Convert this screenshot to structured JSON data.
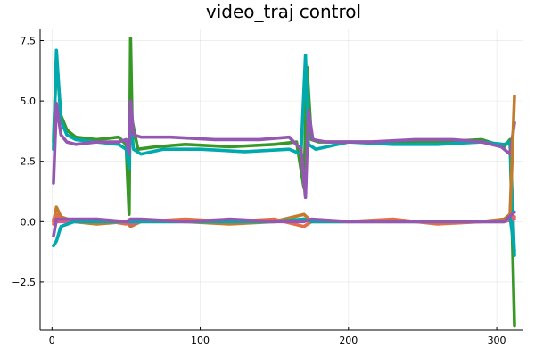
{
  "chart_data": {
    "type": "line",
    "title": "video_traj control",
    "xlabel": "",
    "ylabel": "",
    "xlim": [
      -8,
      318
    ],
    "ylim": [
      -4.5,
      8.0
    ],
    "xticks": [
      0,
      100,
      200,
      300
    ],
    "xtick_labels": [
      "0",
      "100",
      "200",
      "300"
    ],
    "yticks": [
      -2.5,
      0.0,
      2.5,
      5.0,
      7.5
    ],
    "ytick_labels": [
      "−2.5",
      "0.0",
      "2.5",
      "5.0",
      "7.5"
    ],
    "grid": true,
    "legend": "none",
    "series": [
      {
        "color": "#389826",
        "values": [
          [
            1,
            3.3
          ],
          [
            3,
            6.8
          ],
          [
            6,
            4.4
          ],
          [
            10,
            3.8
          ],
          [
            16,
            3.5
          ],
          [
            30,
            3.4
          ],
          [
            45,
            3.5
          ],
          [
            50,
            3.2
          ],
          [
            52,
            0.3
          ],
          [
            53,
            7.6
          ],
          [
            54,
            4.2
          ],
          [
            58,
            3.0
          ],
          [
            70,
            3.1
          ],
          [
            90,
            3.2
          ],
          [
            120,
            3.1
          ],
          [
            150,
            3.2
          ],
          [
            165,
            3.3
          ],
          [
            170,
            1.4
          ],
          [
            172,
            6.4
          ],
          [
            175,
            3.4
          ],
          [
            180,
            3.3
          ],
          [
            220,
            3.3
          ],
          [
            260,
            3.3
          ],
          [
            290,
            3.4
          ],
          [
            305,
            3.1
          ],
          [
            309,
            3.4
          ],
          [
            312,
            -4.3
          ]
        ]
      },
      {
        "color": "#00a9ad",
        "values": [
          [
            1,
            3.0
          ],
          [
            3,
            7.1
          ],
          [
            6,
            4.2
          ],
          [
            10,
            3.6
          ],
          [
            16,
            3.4
          ],
          [
            30,
            3.3
          ],
          [
            45,
            3.2
          ],
          [
            50,
            3.0
          ],
          [
            52,
            2.2
          ],
          [
            53,
            4.4
          ],
          [
            55,
            3.0
          ],
          [
            60,
            2.8
          ],
          [
            75,
            3.0
          ],
          [
            100,
            3.0
          ],
          [
            130,
            2.9
          ],
          [
            160,
            3.0
          ],
          [
            168,
            2.8
          ],
          [
            171,
            6.9
          ],
          [
            173,
            3.2
          ],
          [
            178,
            3.0
          ],
          [
            200,
            3.3
          ],
          [
            230,
            3.2
          ],
          [
            260,
            3.2
          ],
          [
            290,
            3.3
          ],
          [
            305,
            3.2
          ],
          [
            309,
            3.3
          ],
          [
            312,
            -1.4
          ]
        ]
      },
      {
        "color": "#9558b2",
        "values": [
          [
            1,
            1.6
          ],
          [
            3,
            4.9
          ],
          [
            6,
            3.6
          ],
          [
            10,
            3.3
          ],
          [
            16,
            3.2
          ],
          [
            30,
            3.3
          ],
          [
            45,
            3.3
          ],
          [
            50,
            3.4
          ],
          [
            52,
            2.8
          ],
          [
            53,
            5.0
          ],
          [
            55,
            3.6
          ],
          [
            60,
            3.5
          ],
          [
            80,
            3.5
          ],
          [
            110,
            3.4
          ],
          [
            140,
            3.4
          ],
          [
            160,
            3.5
          ],
          [
            168,
            3.0
          ],
          [
            171,
            1.0
          ],
          [
            173,
            4.6
          ],
          [
            176,
            3.4
          ],
          [
            185,
            3.3
          ],
          [
            215,
            3.3
          ],
          [
            245,
            3.4
          ],
          [
            270,
            3.4
          ],
          [
            290,
            3.3
          ],
          [
            303,
            3.1
          ],
          [
            309,
            2.8
          ],
          [
            312,
            4.1
          ]
        ]
      },
      {
        "color": "#c27c2e",
        "values": [
          [
            1,
            0.0
          ],
          [
            3,
            0.6
          ],
          [
            6,
            0.2
          ],
          [
            15,
            0.0
          ],
          [
            30,
            -0.1
          ],
          [
            50,
            0.0
          ],
          [
            53,
            -0.2
          ],
          [
            60,
            0.0
          ],
          [
            90,
            0.0
          ],
          [
            120,
            -0.1
          ],
          [
            150,
            0.0
          ],
          [
            170,
            0.3
          ],
          [
            175,
            0.0
          ],
          [
            200,
            0.0
          ],
          [
            230,
            0.0
          ],
          [
            260,
            0.0
          ],
          [
            290,
            0.0
          ],
          [
            305,
            0.1
          ],
          [
            309,
            0.3
          ],
          [
            312,
            5.2
          ]
        ]
      },
      {
        "color": "#e26f46",
        "values": [
          [
            1,
            -0.1
          ],
          [
            3,
            0.3
          ],
          [
            6,
            0.1
          ],
          [
            15,
            0.0
          ],
          [
            30,
            0.1
          ],
          [
            50,
            -0.1
          ],
          [
            53,
            0.1
          ],
          [
            60,
            0.0
          ],
          [
            90,
            0.1
          ],
          [
            120,
            0.0
          ],
          [
            150,
            0.1
          ],
          [
            170,
            -0.2
          ],
          [
            175,
            0.0
          ],
          [
            200,
            0.0
          ],
          [
            230,
            0.1
          ],
          [
            260,
            -0.1
          ],
          [
            290,
            0.0
          ],
          [
            305,
            0.0
          ],
          [
            312,
            0.2
          ]
        ]
      },
      {
        "color": "#e05a8c",
        "values": [
          [
            1,
            0.1
          ],
          [
            3,
            0.0
          ],
          [
            6,
            0.0
          ],
          [
            15,
            0.0
          ],
          [
            30,
            0.0
          ],
          [
            50,
            0.0
          ],
          [
            53,
            -0.1
          ],
          [
            60,
            0.0
          ],
          [
            90,
            0.0
          ],
          [
            120,
            0.0
          ],
          [
            150,
            0.0
          ],
          [
            170,
            0.1
          ],
          [
            175,
            0.0
          ],
          [
            200,
            0.0
          ],
          [
            230,
            0.0
          ],
          [
            260,
            0.0
          ],
          [
            290,
            0.0
          ],
          [
            305,
            0.0
          ],
          [
            312,
            0.1
          ]
        ]
      },
      {
        "color": "#00a9ad",
        "values": [
          [
            1,
            -1.0
          ],
          [
            3,
            -0.8
          ],
          [
            6,
            -0.2
          ],
          [
            15,
            0.0
          ],
          [
            30,
            0.0
          ],
          [
            50,
            0.0
          ],
          [
            53,
            0.0
          ],
          [
            60,
            0.0
          ],
          [
            90,
            0.0
          ],
          [
            120,
            0.0
          ],
          [
            150,
            0.0
          ],
          [
            170,
            0.1
          ],
          [
            175,
            0.0
          ],
          [
            200,
            0.0
          ],
          [
            230,
            0.0
          ],
          [
            260,
            0.0
          ],
          [
            290,
            0.0
          ],
          [
            305,
            0.0
          ],
          [
            309,
            0.2
          ],
          [
            312,
            -1.2
          ]
        ]
      },
      {
        "color": "#9558b2",
        "values": [
          [
            1,
            -0.6
          ],
          [
            3,
            0.1
          ],
          [
            6,
            0.1
          ],
          [
            15,
            0.1
          ],
          [
            30,
            0.1
          ],
          [
            50,
            0.0
          ],
          [
            53,
            0.1
          ],
          [
            60,
            0.1
          ],
          [
            90,
            0.0
          ],
          [
            120,
            0.1
          ],
          [
            150,
            0.0
          ],
          [
            170,
            0.0
          ],
          [
            175,
            0.1
          ],
          [
            200,
            0.0
          ],
          [
            230,
            0.0
          ],
          [
            260,
            0.0
          ],
          [
            290,
            0.0
          ],
          [
            305,
            0.0
          ],
          [
            312,
            0.4
          ]
        ]
      }
    ]
  }
}
